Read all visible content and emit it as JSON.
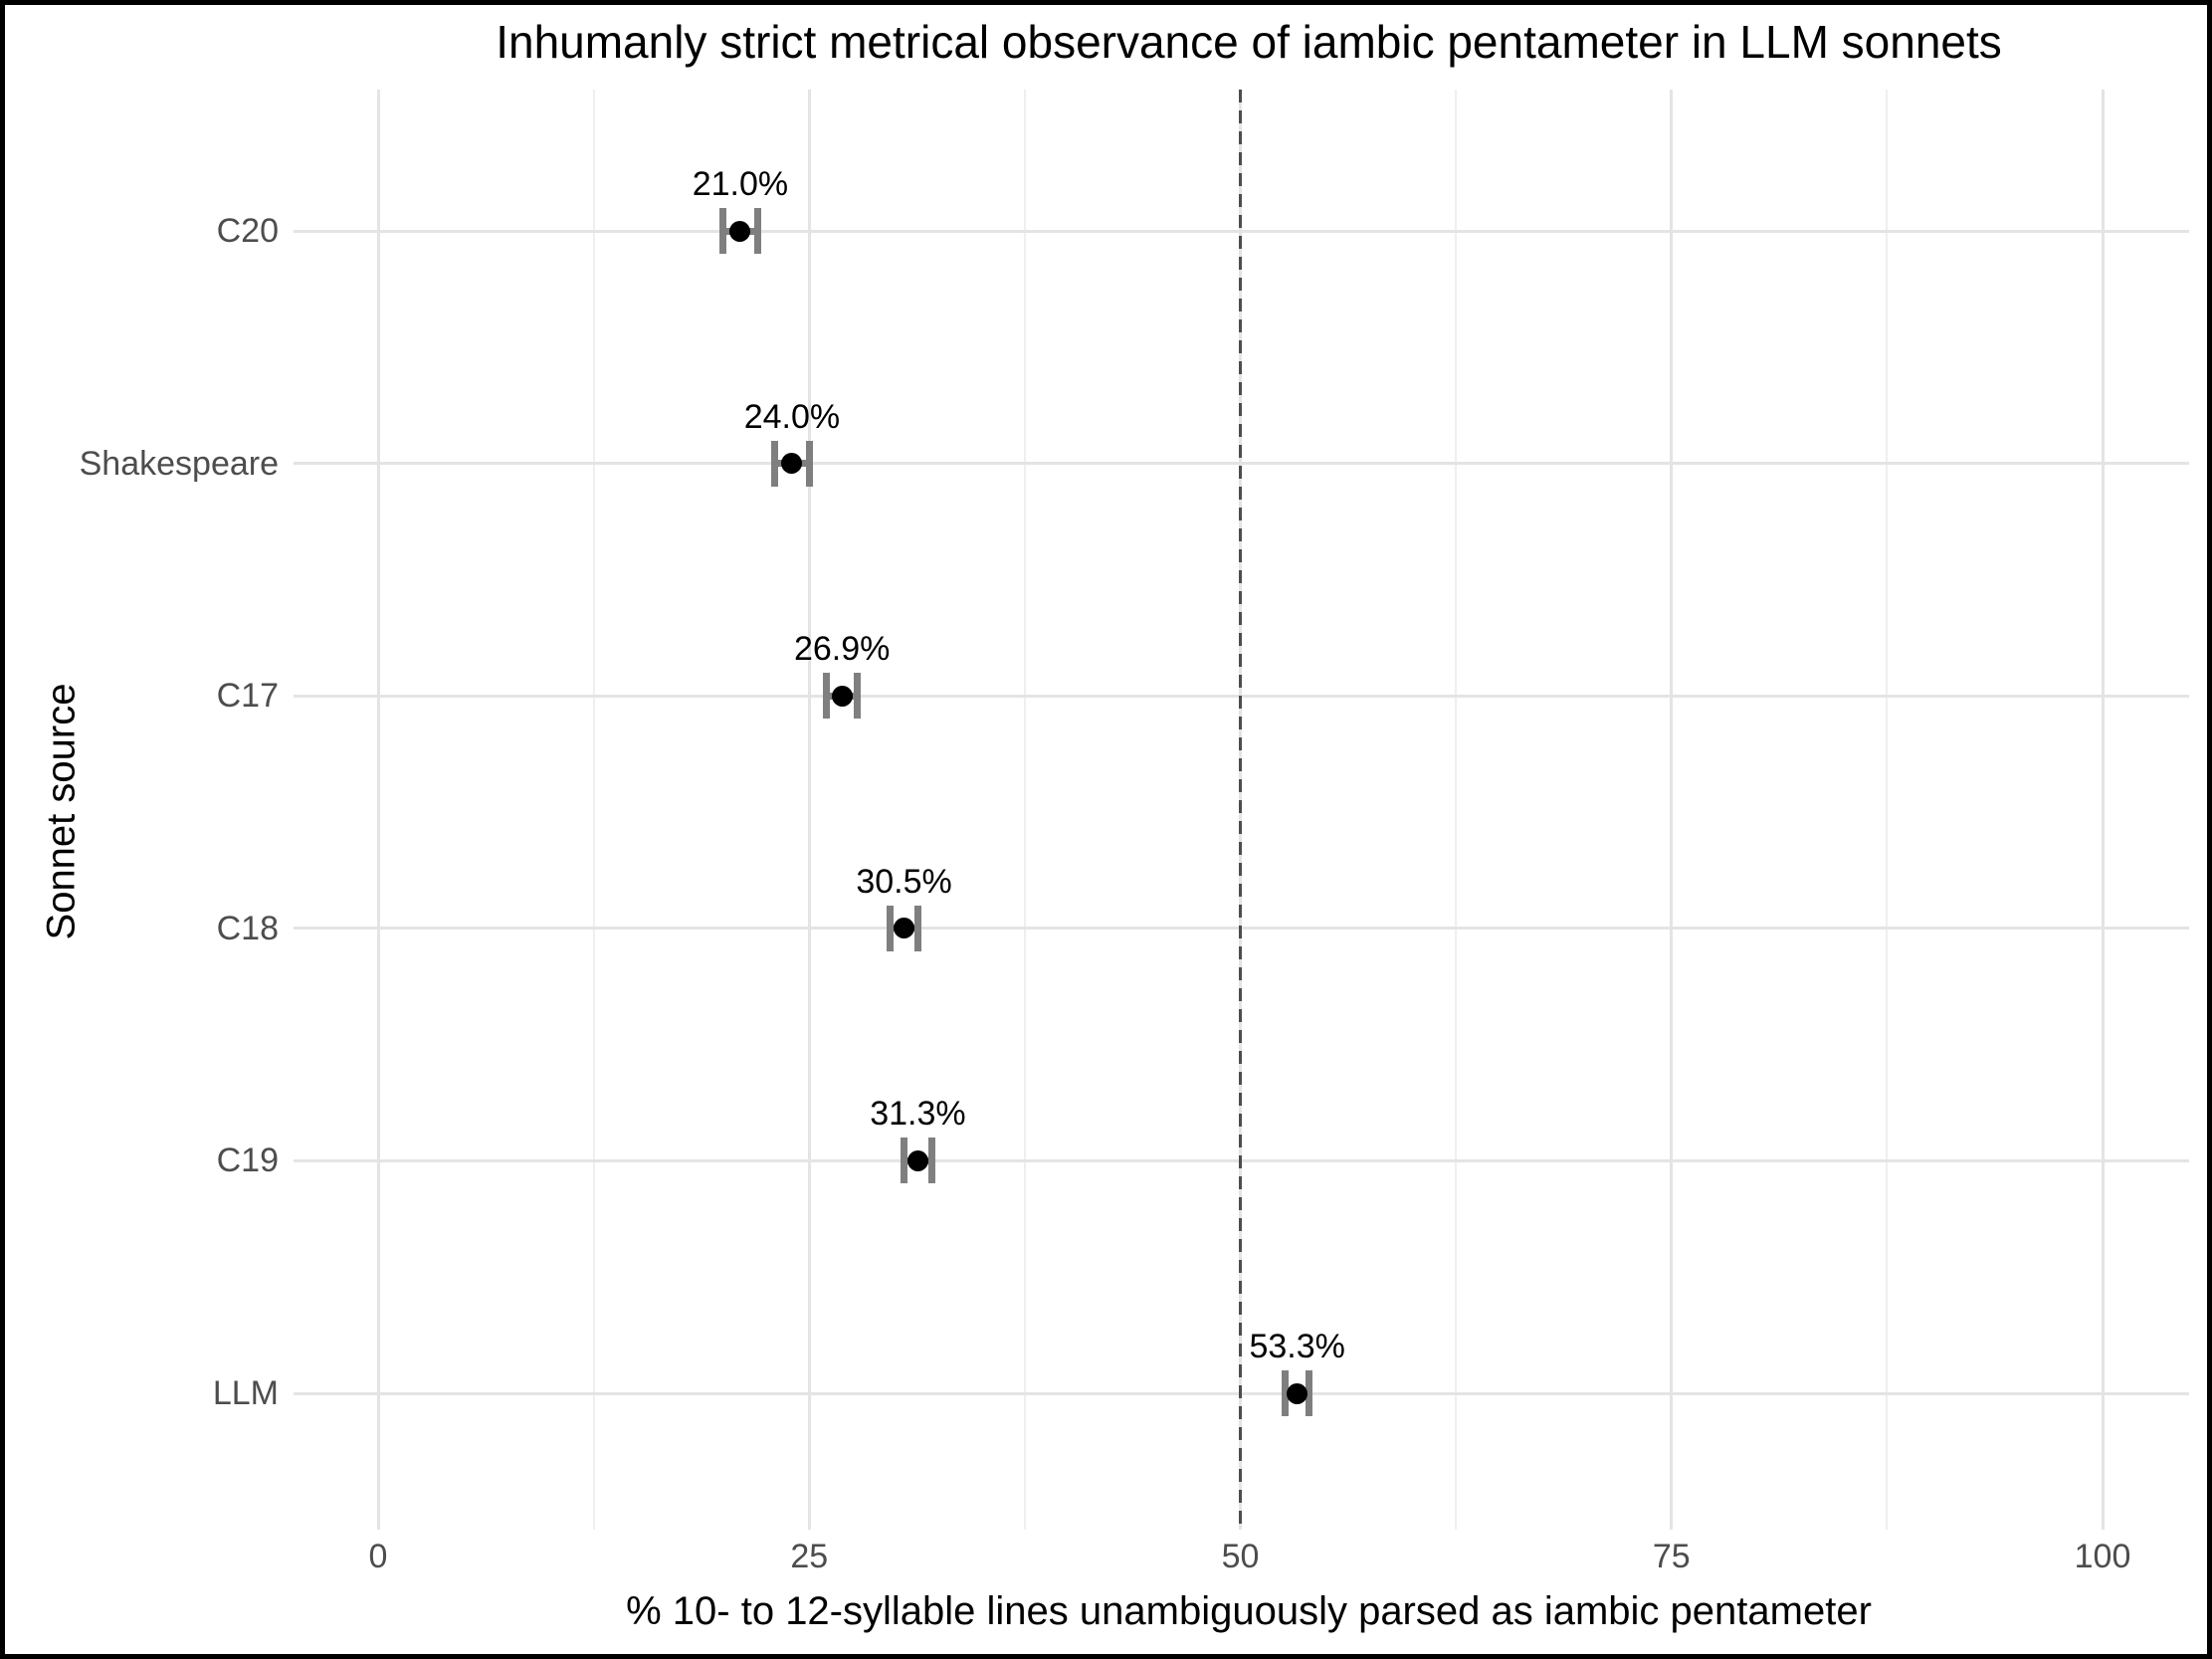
{
  "figure": {
    "title": "Inhumanly strict metrical observance of iambic pentameter in LLM sonnets"
  },
  "chart_data": {
    "type": "scatter",
    "subtype": "horizontal-dot-plot-with-error-bars",
    "title": "Inhumanly strict metrical observance of iambic pentameter in LLM sonnets",
    "xlabel": "% 10- to 12-syllable lines unambiguously parsed as iambic pentameter",
    "ylabel": "Sonnet source",
    "xlim": [
      0,
      100
    ],
    "x_major_ticks": [
      0,
      25,
      50,
      75,
      100
    ],
    "x_tick_labels": [
      "0",
      "25",
      "50",
      "75",
      "100"
    ],
    "x_minor_gridlines": [
      12.5,
      37.5,
      62.5,
      87.5
    ],
    "reference_line_x": 50,
    "reference_line_style": "dashed",
    "grid": "on",
    "legend": "none",
    "categories": [
      "C20",
      "Shakespeare",
      "C17",
      "C18",
      "C19",
      "LLM"
    ],
    "points": [
      {
        "category": "C20",
        "value": 21.0,
        "label": "21.0%",
        "ci_low": 20.0,
        "ci_high": 22.0
      },
      {
        "category": "Shakespeare",
        "value": 24.0,
        "label": "24.0%",
        "ci_low": 23.0,
        "ci_high": 25.0
      },
      {
        "category": "C17",
        "value": 26.9,
        "label": "26.9%",
        "ci_low": 26.0,
        "ci_high": 27.8
      },
      {
        "category": "C18",
        "value": 30.5,
        "label": "30.5%",
        "ci_low": 29.7,
        "ci_high": 31.3
      },
      {
        "category": "C19",
        "value": 31.3,
        "label": "31.3%",
        "ci_low": 30.5,
        "ci_high": 32.1
      },
      {
        "category": "LLM",
        "value": 53.3,
        "label": "53.3%",
        "ci_low": 52.6,
        "ci_high": 54.0
      }
    ],
    "colors": {
      "point": "#000000",
      "error_bar": "#7f7f7f",
      "grid_major": "#e4e4e4",
      "grid_minor": "#efefef",
      "reference_line": "#4d4d4d",
      "axis_text": "#4d4d4d",
      "text": "#000000",
      "background": "#ffffff",
      "frame": "#000000"
    }
  }
}
